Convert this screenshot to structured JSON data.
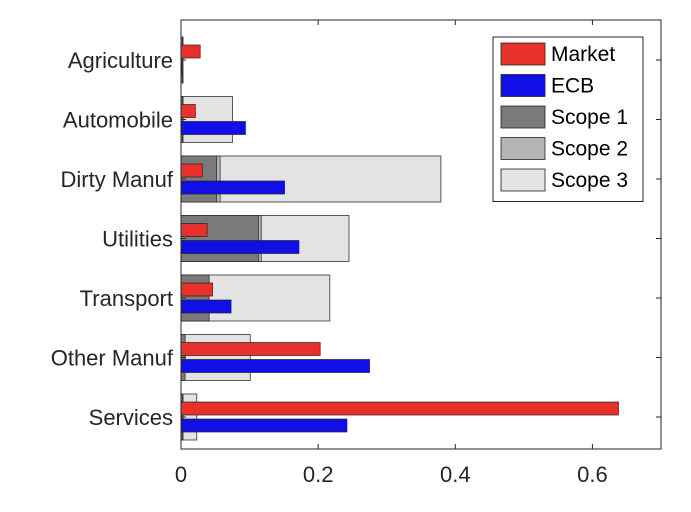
{
  "chart_data": {
    "type": "bar",
    "orientation": "horizontal",
    "title": "",
    "xlabel": "",
    "ylabel": "",
    "xlim": [
      0,
      0.7
    ],
    "xticks": [
      0,
      0.2,
      0.4,
      0.6
    ],
    "xtick_labels": [
      "0",
      "0.2",
      "0.4",
      "0.6"
    ],
    "categories": [
      "Agriculture",
      "Automobile",
      "Dirty Manuf",
      "Utilities",
      "Transport",
      "Other Manuf",
      "Services"
    ],
    "series": [
      {
        "name": "Market",
        "color": "#e8312a",
        "values": [
          0.028,
          0.021,
          0.031,
          0.038,
          0.046,
          0.203,
          0.638
        ]
      },
      {
        "name": "ECB",
        "color": "#1010e6",
        "values": [
          0.001,
          0.094,
          0.151,
          0.172,
          0.073,
          0.275,
          0.242
        ]
      },
      {
        "name": "Scope 1",
        "color": "#7a7a7a",
        "values": [
          0.002,
          0.002,
          0.052,
          0.113,
          0.041,
          0.006,
          0.002
        ]
      },
      {
        "name": "Scope 2",
        "color": "#b5b5b5",
        "values": [
          0.002,
          0.003,
          0.057,
          0.117,
          0.041,
          0.004,
          0.003
        ]
      },
      {
        "name": "Scope 3",
        "color": "#e3e3e3",
        "values": [
          0.003,
          0.075,
          0.379,
          0.245,
          0.217,
          0.101,
          0.023
        ]
      }
    ],
    "grid": false,
    "legend_position": "top-right"
  }
}
